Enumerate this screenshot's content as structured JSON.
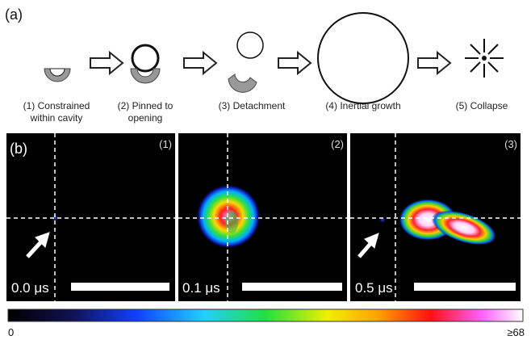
{
  "figure": {
    "panel_a": {
      "tag": "(a)",
      "steps": [
        {
          "lines": [
            "(1) Constrained",
            "within cavity"
          ]
        },
        {
          "lines": [
            "(2) Pinned to",
            "opening"
          ]
        },
        {
          "lines": [
            "(3) Detachment"
          ]
        },
        {
          "lines": [
            "(4) Inertial growth"
          ]
        },
        {
          "lines": [
            "(5) Collapse"
          ]
        }
      ]
    },
    "panel_b": {
      "tag": "(b)",
      "images": [
        {
          "label": "(1)",
          "time": "0.0 μs"
        },
        {
          "label": "(2)",
          "time": "0.1 μs"
        },
        {
          "label": "(3)",
          "time": "0.5 μs"
        }
      ],
      "colorbar": {
        "min_label": "0",
        "max_label": "≥68"
      }
    }
  }
}
